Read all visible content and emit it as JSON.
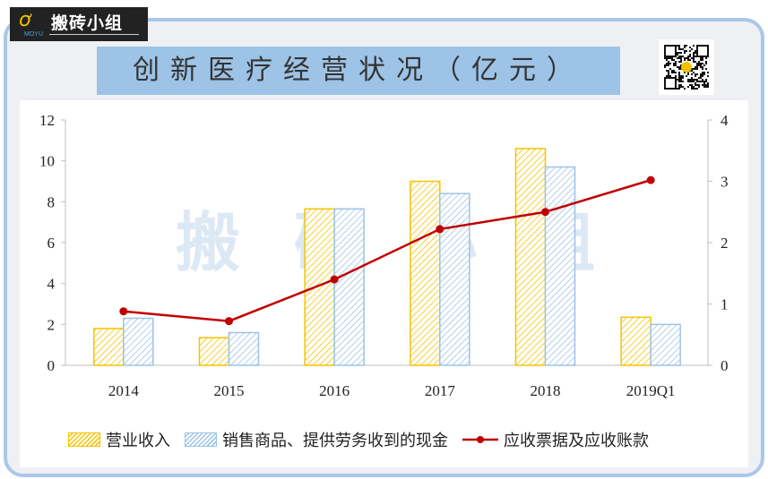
{
  "brand": {
    "name": "搬砖小组",
    "tagline": "MOYU"
  },
  "title": "创新医疗经营状况（亿元）",
  "watermark": "搬砖小组",
  "chart_data": {
    "type": "bar",
    "title": "创新医疗经营状况（亿元）",
    "categories": [
      "2014",
      "2015",
      "2016",
      "2017",
      "2018",
      "2019Q1"
    ],
    "series": [
      {
        "name": "营业收入",
        "type": "bar",
        "axis": "left",
        "color": "#f5c400",
        "values": [
          1.8,
          1.35,
          7.65,
          9.0,
          10.6,
          2.35
        ]
      },
      {
        "name": "销售商品、提供劳务收到的现金",
        "type": "bar",
        "axis": "left",
        "color": "#9dc3e6",
        "values": [
          2.3,
          1.6,
          7.65,
          8.4,
          9.7,
          2.0
        ]
      },
      {
        "name": "应收票据及应收账款",
        "type": "line",
        "axis": "right",
        "color": "#c00000",
        "values": [
          0.88,
          0.72,
          1.4,
          2.22,
          2.5,
          3.02
        ]
      }
    ],
    "ylim_left": [
      0,
      12
    ],
    "yticks_left": [
      "0",
      "2",
      "4",
      "6",
      "8",
      "10",
      "12"
    ],
    "ylim_right": [
      0,
      4
    ],
    "yticks_right": [
      "0",
      "1",
      "2",
      "3",
      "4"
    ],
    "grid": false,
    "legend": "bottom"
  }
}
